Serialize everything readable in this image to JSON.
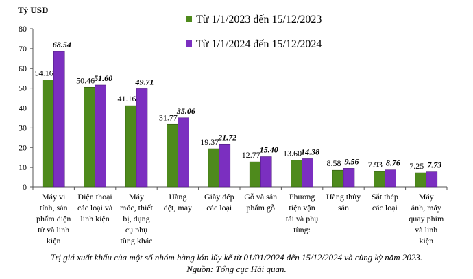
{
  "chart_data": {
    "type": "bar",
    "ylabel": "Tỷ USD",
    "ylim": [
      0,
      80
    ],
    "yticks": [
      0,
      10,
      20,
      30,
      40,
      50,
      60,
      70,
      80
    ],
    "grid": false,
    "legend_position": "top-right",
    "categories": [
      [
        "Máy vi",
        "tính, sản",
        "phẩm điện",
        "tử và linh",
        "kiện"
      ],
      [
        "Điện thoại",
        "các loại và",
        "linh kiện"
      ],
      [
        "Máy",
        "móc, thiết",
        "bị, dụng",
        "cụ phụ",
        "tùng khác"
      ],
      [
        "Hàng",
        "dệt, may"
      ],
      [
        "Giày dép",
        "các loại"
      ],
      [
        "Gỗ và sản",
        "phẩm gỗ"
      ],
      [
        "Phương",
        "tiện vận",
        "tải và phụ",
        "tùng:"
      ],
      [
        "Hàng thủy",
        "sản"
      ],
      [
        "Sắt thép",
        "các loại"
      ],
      [
        "Máy",
        "ảnh, máy",
        "quay phim",
        "và linh",
        "kiện"
      ]
    ],
    "series": [
      {
        "name": "Từ 1/1/2023 đến 15/12/2023",
        "color": "#4e8a1c",
        "labels": [
          "54.16",
          "50.46",
          "41.16",
          "31.77",
          "19.37",
          "12.77",
          "13.60",
          "8.58",
          "7.93",
          "7.25"
        ],
        "values": [
          54.16,
          50.46,
          41.16,
          31.77,
          19.37,
          12.77,
          13.6,
          8.58,
          7.93,
          7.25
        ]
      },
      {
        "name": "Từ 1/1/2024 đến 15/12/2024",
        "color": "#7b2fc0",
        "labels": [
          "68.54",
          "51.60",
          "49.71",
          "35.06",
          "21.72",
          "15.40",
          "14.38",
          "9.56",
          "8.76",
          "7.73"
        ],
        "values": [
          68.54,
          51.6,
          49.71,
          35.06,
          21.72,
          15.4,
          14.38,
          9.56,
          8.76,
          7.73
        ]
      }
    ]
  },
  "caption": "Trị giá xuất khẩu của một số nhóm hàng lớn lũy kế từ 01/01/2024 đến 15/12/2024 và cùng kỳ năm 2023.",
  "source": "Nguồn: Tổng cục Hải quan."
}
